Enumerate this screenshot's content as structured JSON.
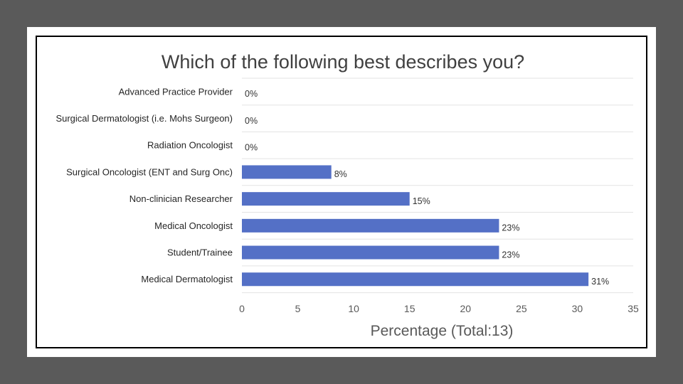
{
  "chart_data": {
    "type": "bar",
    "orientation": "horizontal",
    "title": "Which of the following best describes you?",
    "xlabel": "Percentage (Total:13)",
    "ylabel": "",
    "xlim": [
      0,
      35
    ],
    "xticks": [
      "0",
      "5",
      "10",
      "15",
      "20",
      "25",
      "30",
      "35"
    ],
    "grid": true,
    "categories": [
      "Advanced Practice Provider",
      "Surgical Dermatologist (i.e. Mohs Surgeon)",
      "Radiation Oncologist",
      "Surgical Oncologist (ENT and Surg Onc)",
      "Non-clinician Researcher",
      "Medical Oncologist",
      "Student/Trainee",
      "Medical Dermatologist"
    ],
    "values": [
      0,
      0,
      0,
      8,
      15,
      23,
      23,
      31
    ],
    "value_labels": [
      "0%",
      "0%",
      "0%",
      "8%",
      "15%",
      "23%",
      "23%",
      "31%"
    ],
    "bar_color": "#5470c6"
  }
}
